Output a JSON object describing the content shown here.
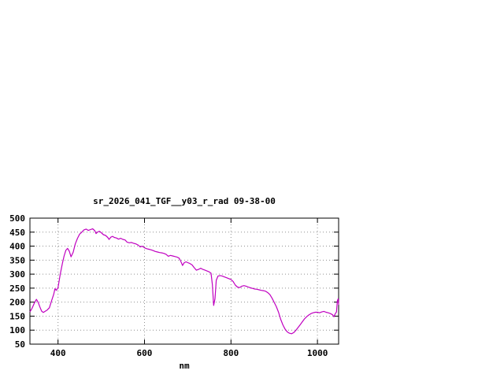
{
  "page": {
    "background": "#ffffff"
  },
  "chart_data": {
    "type": "line",
    "title": "sr_2026_041_TGF__y03_r_rad 09-38-00",
    "xlabel": "nm",
    "ylabel": "",
    "xlim": [
      335,
      1049
    ],
    "ylim": [
      50,
      500
    ],
    "xticks": [
      400,
      600,
      800,
      1000
    ],
    "yticks": [
      50,
      100,
      150,
      200,
      250,
      300,
      350,
      400,
      450,
      500
    ],
    "grid": true,
    "legend": "none",
    "line_color": "#c000c0",
    "axis_color": "#000000",
    "points": [
      [
        335,
        165
      ],
      [
        340,
        178
      ],
      [
        345,
        196
      ],
      [
        350,
        210
      ],
      [
        354,
        200
      ],
      [
        358,
        183
      ],
      [
        362,
        168
      ],
      [
        366,
        163
      ],
      [
        370,
        167
      ],
      [
        375,
        172
      ],
      [
        380,
        180
      ],
      [
        385,
        205
      ],
      [
        390,
        228
      ],
      [
        393,
        248
      ],
      [
        396,
        242
      ],
      [
        400,
        252
      ],
      [
        405,
        298
      ],
      [
        410,
        338
      ],
      [
        414,
        365
      ],
      [
        418,
        385
      ],
      [
        422,
        392
      ],
      [
        426,
        382
      ],
      [
        430,
        362
      ],
      [
        435,
        378
      ],
      [
        440,
        408
      ],
      [
        445,
        428
      ],
      [
        450,
        443
      ],
      [
        455,
        450
      ],
      [
        460,
        458
      ],
      [
        465,
        461
      ],
      [
        470,
        456
      ],
      [
        475,
        459
      ],
      [
        480,
        462
      ],
      [
        485,
        455
      ],
      [
        488,
        445
      ],
      [
        492,
        451
      ],
      [
        496,
        453
      ],
      [
        500,
        448
      ],
      [
        505,
        441
      ],
      [
        510,
        438
      ],
      [
        515,
        431
      ],
      [
        518,
        424
      ],
      [
        522,
        432
      ],
      [
        526,
        435
      ],
      [
        530,
        431
      ],
      [
        535,
        429
      ],
      [
        540,
        425
      ],
      [
        545,
        428
      ],
      [
        550,
        424
      ],
      [
        555,
        422
      ],
      [
        560,
        414
      ],
      [
        565,
        412
      ],
      [
        570,
        413
      ],
      [
        575,
        410
      ],
      [
        580,
        408
      ],
      [
        585,
        404
      ],
      [
        590,
        397
      ],
      [
        595,
        400
      ],
      [
        600,
        394
      ],
      [
        605,
        391
      ],
      [
        610,
        389
      ],
      [
        615,
        387
      ],
      [
        620,
        384
      ],
      [
        625,
        381
      ],
      [
        630,
        379
      ],
      [
        635,
        377
      ],
      [
        640,
        376
      ],
      [
        645,
        374
      ],
      [
        650,
        371
      ],
      [
        655,
        364
      ],
      [
        660,
        367
      ],
      [
        665,
        365
      ],
      [
        670,
        363
      ],
      [
        675,
        361
      ],
      [
        680,
        357
      ],
      [
        684,
        346
      ],
      [
        688,
        331
      ],
      [
        692,
        341
      ],
      [
        696,
        344
      ],
      [
        700,
        341
      ],
      [
        705,
        338
      ],
      [
        710,
        333
      ],
      [
        715,
        323
      ],
      [
        720,
        314
      ],
      [
        725,
        317
      ],
      [
        730,
        321
      ],
      [
        735,
        317
      ],
      [
        740,
        314
      ],
      [
        745,
        311
      ],
      [
        750,
        308
      ],
      [
        754,
        303
      ],
      [
        757,
        262
      ],
      [
        760,
        188
      ],
      [
        763,
        212
      ],
      [
        766,
        278
      ],
      [
        770,
        293
      ],
      [
        775,
        295
      ],
      [
        780,
        293
      ],
      [
        785,
        290
      ],
      [
        790,
        287
      ],
      [
        795,
        284
      ],
      [
        800,
        281
      ],
      [
        805,
        274
      ],
      [
        810,
        261
      ],
      [
        815,
        254
      ],
      [
        820,
        252
      ],
      [
        825,
        257
      ],
      [
        830,
        259
      ],
      [
        835,
        257
      ],
      [
        840,
        254
      ],
      [
        845,
        251
      ],
      [
        850,
        249
      ],
      [
        855,
        247
      ],
      [
        860,
        246
      ],
      [
        865,
        244
      ],
      [
        870,
        242
      ],
      [
        875,
        241
      ],
      [
        880,
        239
      ],
      [
        885,
        234
      ],
      [
        890,
        227
      ],
      [
        895,
        214
      ],
      [
        900,
        199
      ],
      [
        905,
        184
      ],
      [
        910,
        164
      ],
      [
        915,
        139
      ],
      [
        920,
        119
      ],
      [
        925,
        104
      ],
      [
        930,
        94
      ],
      [
        935,
        89
      ],
      [
        940,
        87
      ],
      [
        945,
        91
      ],
      [
        950,
        99
      ],
      [
        955,
        109
      ],
      [
        960,
        119
      ],
      [
        965,
        130
      ],
      [
        970,
        140
      ],
      [
        975,
        148
      ],
      [
        980,
        154
      ],
      [
        985,
        159
      ],
      [
        990,
        162
      ],
      [
        995,
        164
      ],
      [
        1000,
        164
      ],
      [
        1005,
        162
      ],
      [
        1010,
        165
      ],
      [
        1015,
        167
      ],
      [
        1020,
        164
      ],
      [
        1025,
        162
      ],
      [
        1030,
        159
      ],
      [
        1035,
        155
      ],
      [
        1038,
        148
      ],
      [
        1041,
        158
      ],
      [
        1044,
        165
      ],
      [
        1046,
        205
      ],
      [
        1048,
        212
      ],
      [
        1049,
        190
      ]
    ]
  }
}
